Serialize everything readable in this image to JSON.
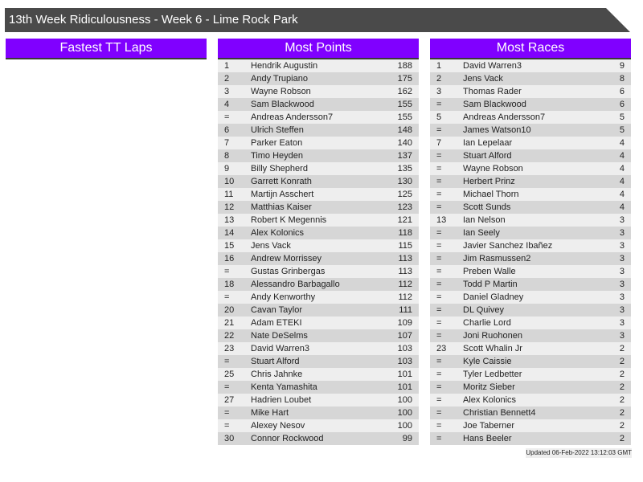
{
  "title": "13th Week Ridiculousness - Week 6 - Lime Rock Park",
  "panels": [
    {
      "id": "fastest-tt-laps",
      "header": "Fastest TT Laps",
      "rows": []
    },
    {
      "id": "most-points",
      "header": "Most Points",
      "rows": [
        [
          "1",
          "Hendrik Augustin",
          "188"
        ],
        [
          "2",
          "Andy Trupiano",
          "175"
        ],
        [
          "3",
          "Wayne Robson",
          "162"
        ],
        [
          "4",
          "Sam Blackwood",
          "155"
        ],
        [
          "=",
          "Andreas Andersson7",
          "155"
        ],
        [
          "6",
          "Ulrich Steffen",
          "148"
        ],
        [
          "7",
          "Parker Eaton",
          "140"
        ],
        [
          "8",
          "Timo Heyden",
          "137"
        ],
        [
          "9",
          "Billy Shepherd",
          "135"
        ],
        [
          "10",
          "Garrett Konrath",
          "130"
        ],
        [
          "11",
          "Martijn Asschert",
          "125"
        ],
        [
          "12",
          "Matthias Kaiser",
          "123"
        ],
        [
          "13",
          "Robert K Megennis",
          "121"
        ],
        [
          "14",
          "Alex Kolonics",
          "118"
        ],
        [
          "15",
          "Jens Vack",
          "115"
        ],
        [
          "16",
          "Andrew Morrissey",
          "113"
        ],
        [
          "=",
          "Gustas Grinbergas",
          "113"
        ],
        [
          "18",
          "Alessandro Barbagallo",
          "112"
        ],
        [
          "=",
          "Andy Kenworthy",
          "112"
        ],
        [
          "20",
          "Cavan Taylor",
          "111"
        ],
        [
          "21",
          "Adam ETEKI",
          "109"
        ],
        [
          "22",
          "Nate DeSelms",
          "107"
        ],
        [
          "23",
          "David Warren3",
          "103"
        ],
        [
          "=",
          "Stuart Alford",
          "103"
        ],
        [
          "25",
          "Chris Jahnke",
          "101"
        ],
        [
          "=",
          "Kenta Yamashita",
          "101"
        ],
        [
          "27",
          "Hadrien Loubet",
          "100"
        ],
        [
          "=",
          "Mike Hart",
          "100"
        ],
        [
          "=",
          "Alexey Nesov",
          "100"
        ],
        [
          "30",
          "Connor Rockwood",
          "99"
        ]
      ]
    },
    {
      "id": "most-races",
      "header": "Most Races",
      "rows": [
        [
          "1",
          "David Warren3",
          "9"
        ],
        [
          "2",
          "Jens Vack",
          "8"
        ],
        [
          "3",
          "Thomas Rader",
          "6"
        ],
        [
          "=",
          "Sam Blackwood",
          "6"
        ],
        [
          "5",
          "Andreas Andersson7",
          "5"
        ],
        [
          "=",
          "James Watson10",
          "5"
        ],
        [
          "7",
          "Ian Lepelaar",
          "4"
        ],
        [
          "=",
          "Stuart Alford",
          "4"
        ],
        [
          "=",
          "Wayne Robson",
          "4"
        ],
        [
          "=",
          "Herbert Prinz",
          "4"
        ],
        [
          "=",
          "Michael Thorn",
          "4"
        ],
        [
          "=",
          "Scott Sunds",
          "4"
        ],
        [
          "13",
          "Ian Nelson",
          "3"
        ],
        [
          "=",
          "Ian Seely",
          "3"
        ],
        [
          "=",
          "Javier Sanchez Ibañez",
          "3"
        ],
        [
          "=",
          "Jim Rasmussen2",
          "3"
        ],
        [
          "=",
          "Preben Walle",
          "3"
        ],
        [
          "=",
          "Todd P Martin",
          "3"
        ],
        [
          "=",
          "Daniel Gladney",
          "3"
        ],
        [
          "=",
          "DL Quivey",
          "3"
        ],
        [
          "=",
          "Charlie Lord",
          "3"
        ],
        [
          "=",
          "Joni Ruohonen",
          "3"
        ],
        [
          "23",
          "Scott Whalin Jr",
          "2"
        ],
        [
          "=",
          "Kyle Caissie",
          "2"
        ],
        [
          "=",
          "Tyler Ledbetter",
          "2"
        ],
        [
          "=",
          "Moritz Sieber",
          "2"
        ],
        [
          "=",
          "Alex Kolonics",
          "2"
        ],
        [
          "=",
          "Christian Bennett4",
          "2"
        ],
        [
          "=",
          "Joe Taberner",
          "2"
        ],
        [
          "=",
          "Hans Beeler",
          "2"
        ]
      ]
    }
  ],
  "footer": "Updated 06-Feb-2022 13:12:03 GMT",
  "colors": {
    "title_bg": "#4a4a4a",
    "header_bg": "#8000ff",
    "row_light": "#eeeeee",
    "row_dark": "#d6d6d6"
  }
}
